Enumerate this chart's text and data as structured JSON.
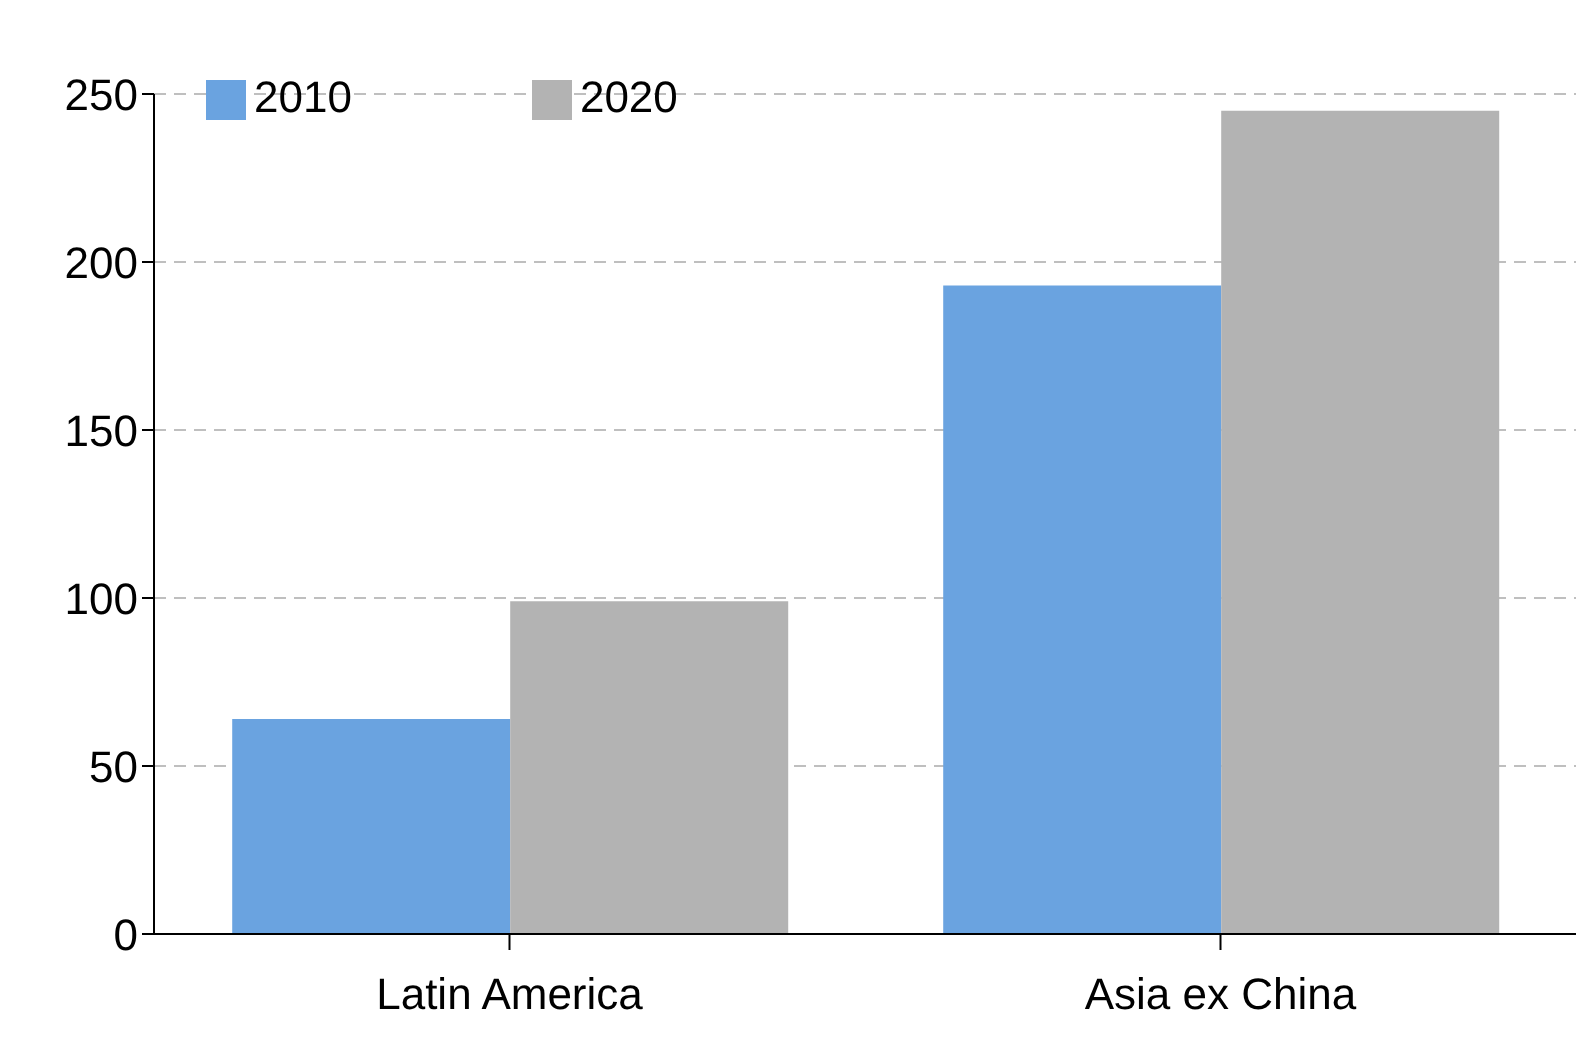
{
  "chart_data": {
    "type": "bar",
    "categories": [
      "Latin America",
      "Asia ex China"
    ],
    "series": [
      {
        "name": "2010",
        "color": "#6aa3e0",
        "values": [
          64,
          193
        ]
      },
      {
        "name": "2020",
        "color": "#b3b3b3",
        "values": [
          99,
          245
        ]
      }
    ],
    "ylim": [
      0,
      250
    ],
    "yticks": [
      0,
      50,
      100,
      150,
      200,
      250
    ],
    "grid": "y",
    "legend": "top left"
  }
}
